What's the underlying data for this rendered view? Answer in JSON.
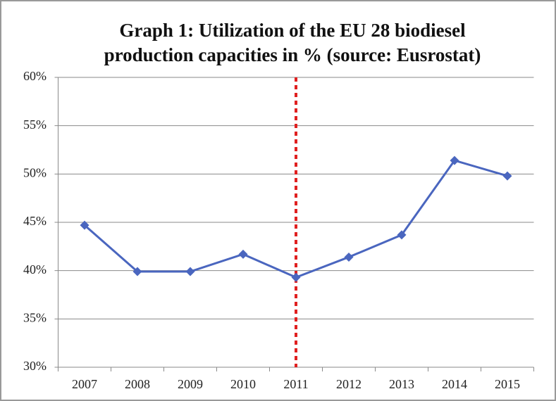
{
  "chart_data": {
    "type": "line",
    "title": [
      "Graph 1: Utilization of the EU 28 biodiesel",
      "production capacities in % (source: Eusrostat)"
    ],
    "categories": [
      "2007",
      "2008",
      "2009",
      "2010",
      "2011",
      "2012",
      "2013",
      "2014",
      "2015"
    ],
    "series": [
      {
        "name": "Utilization",
        "color": "#4a66bf",
        "values": [
          44.7,
          39.9,
          39.9,
          41.7,
          39.3,
          41.4,
          43.7,
          51.4,
          49.8
        ]
      }
    ],
    "ylim": [
      30,
      60
    ],
    "yticks": [
      {
        "value": 30,
        "label": "30%"
      },
      {
        "value": 35,
        "label": "35%"
      },
      {
        "value": 40,
        "label": "40%"
      },
      {
        "value": 45,
        "label": "45%"
      },
      {
        "value": 50,
        "label": "50%"
      },
      {
        "value": 55,
        "label": "55%"
      },
      {
        "value": 60,
        "label": "60%"
      }
    ],
    "grid": true,
    "marker_line": {
      "category": "2011",
      "color": "#e02020"
    }
  }
}
